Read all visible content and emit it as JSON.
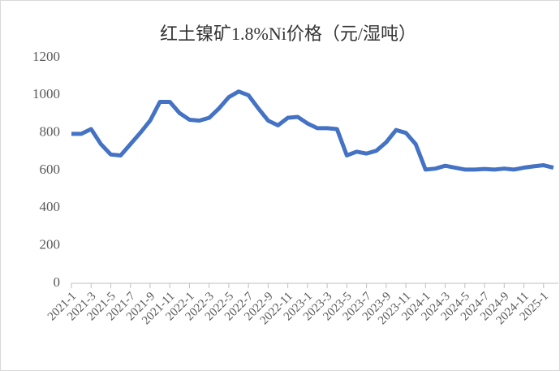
{
  "chart_data": {
    "type": "line",
    "title": "红土镍矿1.8%Ni价格（元/湿吨）",
    "categories": [
      "2021-1",
      null,
      "2021-3",
      null,
      "2021-5",
      null,
      "2021-7",
      null,
      "2021-9",
      null,
      "2021-11",
      null,
      "2022-1",
      null,
      "2022-3",
      null,
      "2022-5",
      null,
      "2022-7",
      null,
      "2022-9",
      null,
      "2022-11",
      null,
      "2023-1",
      null,
      "2023-3",
      null,
      "2023-5",
      null,
      "2023-7",
      null,
      "2023-9",
      null,
      "2023-11",
      null,
      "2024-1",
      null,
      "2024-3",
      null,
      "2024-5",
      null,
      "2024-7",
      null,
      "2024-9",
      null,
      "2024-11",
      null,
      "2025-1",
      null
    ],
    "series": [
      {
        "name": "红土镍矿1.8%Ni价格",
        "color": "#4472c4",
        "values": [
          795,
          795,
          820,
          740,
          685,
          680,
          740,
          800,
          865,
          965,
          965,
          905,
          870,
          865,
          880,
          930,
          990,
          1020,
          1000,
          930,
          865,
          840,
          880,
          885,
          850,
          825,
          825,
          820,
          680,
          700,
          690,
          705,
          750,
          815,
          800,
          740,
          605,
          610,
          625,
          615,
          605,
          605,
          608,
          605,
          610,
          605,
          615,
          622,
          628,
          615
        ]
      }
    ],
    "ylim": [
      0,
      1200
    ],
    "yticks": [
      0,
      200,
      400,
      600,
      800,
      1000,
      1200
    ],
    "grid": false
  }
}
